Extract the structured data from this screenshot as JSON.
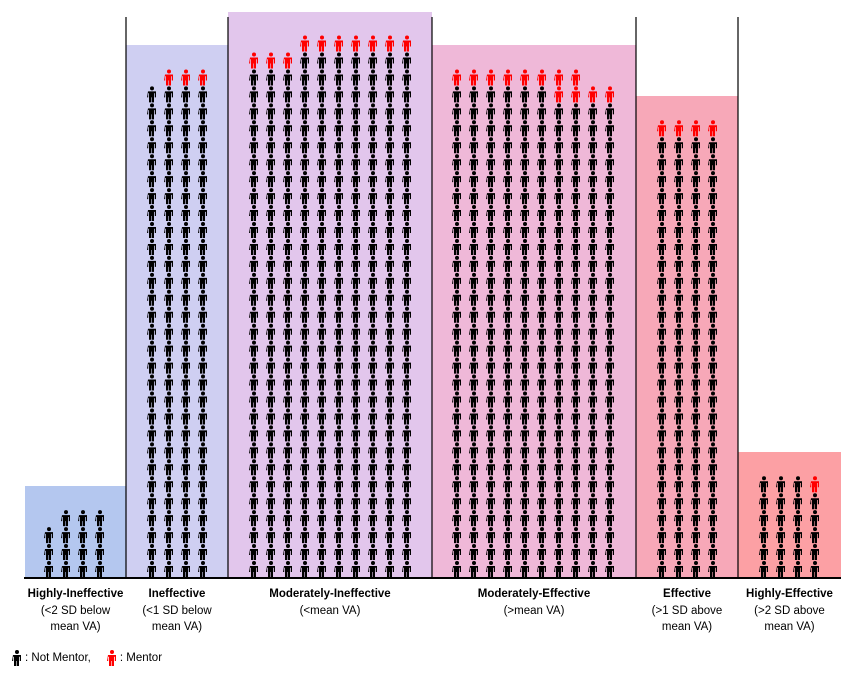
{
  "chart_data": {
    "type": "pictograph",
    "title": "",
    "unit": "one icon = one teacher",
    "colors": {
      "not_mentor": "#000000",
      "mentor": "#ff0000",
      "divider": "#000000"
    },
    "legend": {
      "placement": "bottom-left",
      "items": [
        {
          "key": "not_mentor",
          "label": ": Not Mentor,"
        },
        {
          "key": "mentor",
          "label": ": Mentor"
        }
      ]
    },
    "categories": [
      {
        "name": "Highly-Ineffective",
        "sub1": "(<2 SD below",
        "sub2": "mean VA)",
        "fill": "#b4c7ef",
        "columns": [
          {
            "not_mentor": 3,
            "mentor": 0
          },
          {
            "not_mentor": 4,
            "mentor": 0
          },
          {
            "not_mentor": 4,
            "mentor": 0
          },
          {
            "not_mentor": 4,
            "mentor": 0
          }
        ],
        "total": 15,
        "mentors": 0
      },
      {
        "name": "Ineffective",
        "sub1": "(<1 SD below",
        "sub2": "mean VA)",
        "fill": "#cfcff2",
        "columns": [
          {
            "not_mentor": 29,
            "mentor": 0
          },
          {
            "not_mentor": 29,
            "mentor": 1
          },
          {
            "not_mentor": 29,
            "mentor": 1
          },
          {
            "not_mentor": 29,
            "mentor": 1
          }
        ],
        "total": 119,
        "mentors": 3
      },
      {
        "name": "Moderately-Ineffective",
        "sub1": "(<mean VA)",
        "sub2": "",
        "fill": "#e2c6ec",
        "columns": [
          {
            "not_mentor": 30,
            "mentor": 1
          },
          {
            "not_mentor": 30,
            "mentor": 1
          },
          {
            "not_mentor": 30,
            "mentor": 1
          },
          {
            "not_mentor": 31,
            "mentor": 1
          },
          {
            "not_mentor": 31,
            "mentor": 1
          },
          {
            "not_mentor": 31,
            "mentor": 1
          },
          {
            "not_mentor": 31,
            "mentor": 1
          },
          {
            "not_mentor": 31,
            "mentor": 1
          },
          {
            "not_mentor": 31,
            "mentor": 1
          },
          {
            "not_mentor": 31,
            "mentor": 1
          }
        ],
        "total": 317,
        "mentors": 10
      },
      {
        "name": "Moderately-Effective",
        "sub1": "(>mean VA)",
        "sub2": "",
        "fill": "#efb8d8",
        "columns": [
          {
            "not_mentor": 29,
            "mentor": 1
          },
          {
            "not_mentor": 29,
            "mentor": 1
          },
          {
            "not_mentor": 29,
            "mentor": 1
          },
          {
            "not_mentor": 29,
            "mentor": 1
          },
          {
            "not_mentor": 29,
            "mentor": 1
          },
          {
            "not_mentor": 29,
            "mentor": 1
          },
          {
            "not_mentor": 28,
            "mentor": 2
          },
          {
            "not_mentor": 28,
            "mentor": 2
          },
          {
            "not_mentor": 28,
            "mentor": 1
          },
          {
            "not_mentor": 28,
            "mentor": 1
          }
        ],
        "total": 298,
        "mentors": 12
      },
      {
        "name": "Effective",
        "sub1": "(>1 SD above",
        "sub2": "mean VA)",
        "fill": "#f7a8b8",
        "columns": [
          {
            "not_mentor": 26,
            "mentor": 1
          },
          {
            "not_mentor": 26,
            "mentor": 1
          },
          {
            "not_mentor": 26,
            "mentor": 1
          },
          {
            "not_mentor": 26,
            "mentor": 1
          }
        ],
        "total": 108,
        "mentors": 4
      },
      {
        "name": "Highly-Effective",
        "sub1": "(>2 SD above",
        "sub2": "mean VA)",
        "fill": "#fca0a4",
        "columns": [
          {
            "not_mentor": 6,
            "mentor": 0
          },
          {
            "not_mentor": 6,
            "mentor": 0
          },
          {
            "not_mentor": 6,
            "mentor": 0
          },
          {
            "not_mentor": 5,
            "mentor": 1
          }
        ],
        "total": 24,
        "mentors": 1
      }
    ]
  }
}
